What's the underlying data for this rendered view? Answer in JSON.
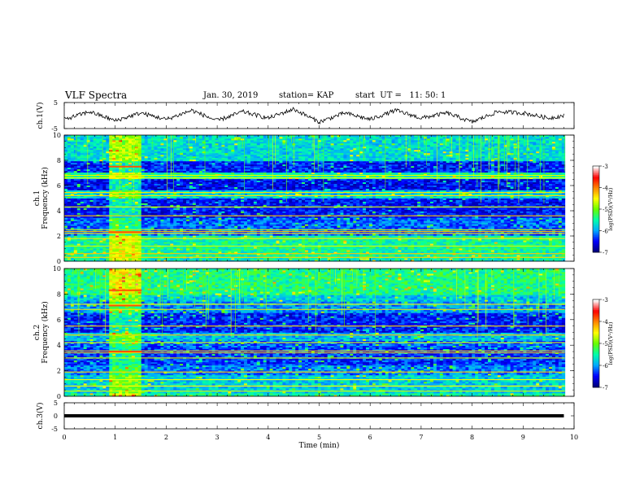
{
  "header": {
    "title": "VLF Spectra",
    "date": "Jan. 30, 2019",
    "station": "station= KAP",
    "start": "start  UT =   11: 50: 1"
  },
  "chart_data": [
    {
      "type": "line",
      "panel": "ch1-waveform",
      "ylabel": "ch.1(V)",
      "ylim": [
        -5,
        5
      ],
      "yticks": [
        "5",
        "-5"
      ],
      "x": [
        0,
        0.5,
        1,
        1.5,
        2,
        2.5,
        3,
        3.5,
        4,
        4.5,
        5,
        5.5,
        6,
        6.5,
        7,
        7.5,
        8,
        8.5,
        9,
        9.5,
        9.8
      ],
      "values": [
        -1.5,
        1.5,
        -2.0,
        1.0,
        -1.5,
        2.0,
        -2.0,
        1.5,
        -1.0,
        2.5,
        -2.5,
        1.0,
        -1.5,
        2.0,
        -1.0,
        1.0,
        -2.5,
        1.5,
        1.0,
        -1.0,
        0.0
      ]
    },
    {
      "type": "heatmap",
      "panel": "ch1-spectrogram",
      "ylabel": "ch.1\nFrequency  (kHz)",
      "ylim": [
        0,
        10
      ],
      "yticks": [
        "0",
        "2",
        "4",
        "6",
        "8",
        "10"
      ],
      "colorbar": {
        "label": "log(PSD)(V²/Hz)",
        "ticks": [
          "-3",
          "-4",
          "-5",
          "-6",
          "-7"
        ],
        "range": [
          -7,
          -3
        ],
        "colors": [
          "#00007a",
          "#0000ff",
          "#00aaff",
          "#00ffaa",
          "#66ff00",
          "#ffff00",
          "#ff8800",
          "#ff0000",
          "#ffffff"
        ]
      },
      "burst_interval_min": [
        0.87,
        1.52
      ],
      "strong_lines_khz": [
        0.3,
        0.6,
        1.2,
        1.8,
        2.2,
        2.35,
        2.5,
        3.6,
        4.3,
        5.2,
        5.45,
        6.6,
        6.8
      ],
      "burst_hot_lines_khz": [
        2.3,
        7.5
      ]
    },
    {
      "type": "heatmap",
      "panel": "ch2-spectrogram",
      "ylabel": "ch.2\nFrequency  (kHz)",
      "ylim": [
        0,
        10
      ],
      "yticks": [
        "0",
        "2",
        "4",
        "6",
        "8",
        "10"
      ],
      "colorbar": {
        "label": "log(PSD)(V²/Hz)",
        "ticks": [
          "-3",
          "-4",
          "-5",
          "-6",
          "-7"
        ],
        "range": [
          -7,
          -3
        ]
      },
      "burst_interval_min": [
        0.87,
        1.52
      ],
      "strong_lines_khz": [
        0.4,
        0.8,
        1.3,
        1.9,
        3.0,
        3.4,
        3.55,
        4.2,
        4.8,
        5.5,
        6.8,
        7.2
      ],
      "burst_hot_lines_khz": [
        3.5,
        7.1,
        8.3
      ]
    },
    {
      "type": "line",
      "panel": "ch3-waveform",
      "ylabel": "ch.3(V)",
      "ylim": [
        -5,
        5
      ],
      "yticks": [
        "5",
        "0",
        "-5"
      ],
      "x": [
        0,
        9.8
      ],
      "values": [
        0,
        0
      ]
    }
  ],
  "xaxis": {
    "label": "Time  (min)",
    "ticks": [
      "0",
      "1",
      "2",
      "3",
      "4",
      "5",
      "6",
      "7",
      "8",
      "9",
      "10"
    ],
    "range": [
      0,
      10
    ]
  }
}
